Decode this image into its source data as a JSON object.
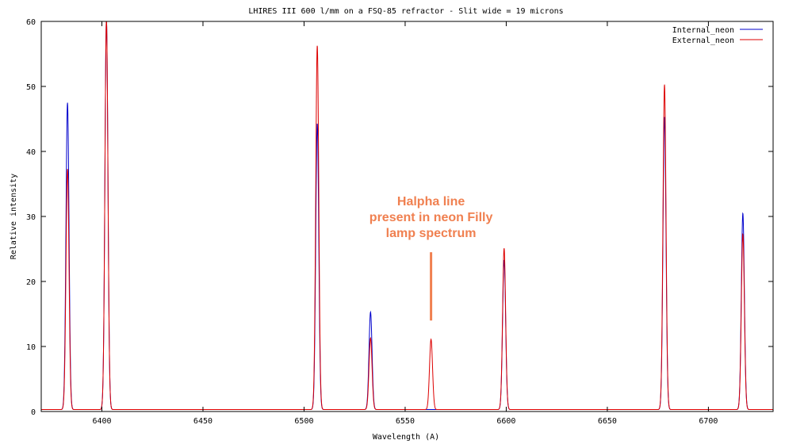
{
  "chart_data": {
    "type": "line",
    "title": "LHIRES III 600 l/mm on a FSQ-85 refractor - Slit wide = 19 microns",
    "xlabel": "Wavelength (A)",
    "ylabel": "Relative intensity",
    "xlim": [
      6370,
      6732
    ],
    "ylim": [
      0,
      60
    ],
    "x_ticks": [
      6400,
      6450,
      6500,
      6550,
      6600,
      6650,
      6700
    ],
    "x_tick_labels": [
      "6400",
      "6450",
      "6500",
      "6550",
      "6600",
      "6650",
      "6700"
    ],
    "y_ticks": [
      0,
      10,
      20,
      30,
      40,
      50,
      60
    ],
    "y_tick_labels": [
      "0",
      "10",
      "20",
      "30",
      "40",
      "50",
      "60"
    ],
    "grid": false,
    "legend_position": "top-right",
    "baseline": 0.3,
    "series": [
      {
        "name": "Internal_neon",
        "color": "#0000cc",
        "peaks": [
          {
            "x": 6382.99,
            "y": 47.2
          },
          {
            "x": 6402.25,
            "y": 60.0
          },
          {
            "x": 6506.53,
            "y": 44.0
          },
          {
            "x": 6532.88,
            "y": 15.0
          },
          {
            "x": 6598.95,
            "y": 23.0
          },
          {
            "x": 6678.28,
            "y": 45.0
          },
          {
            "x": 6717.04,
            "y": 30.2
          }
        ]
      },
      {
        "name": "External_neon",
        "color": "#dd0000",
        "peaks": [
          {
            "x": 6382.99,
            "y": 37.0
          },
          {
            "x": 6402.25,
            "y": 60.0
          },
          {
            "x": 6506.53,
            "y": 56.0
          },
          {
            "x": 6532.88,
            "y": 11.0
          },
          {
            "x": 6562.8,
            "y": 10.8
          },
          {
            "x": 6598.95,
            "y": 24.8
          },
          {
            "x": 6678.28,
            "y": 50.0
          },
          {
            "x": 6717.04,
            "y": 27.0
          }
        ]
      }
    ],
    "annotation": {
      "lines": [
        "Halpha line",
        "present in neon Filly",
        "lamp spectrum"
      ],
      "color": "#f08050",
      "pointer_x": 6562.8,
      "pointer_y_range": [
        14,
        24.5
      ]
    }
  }
}
